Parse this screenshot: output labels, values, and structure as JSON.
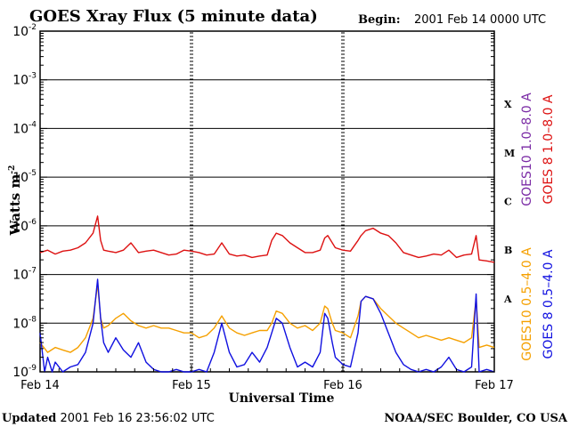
{
  "chart_data": {
    "type": "line",
    "title": "GOES Xray Flux (5 minute data)",
    "begin_label": "Begin:",
    "begin_value": "2001 Feb 14 0000 UTC",
    "ylabel_main": "Watts m",
    "ylabel_sup": "-2",
    "xlabel": "Universal Time",
    "updated_label": "Updated",
    "updated_value": "2001 Feb 16 23:56:02 UTC",
    "source": "NOAA/SEC Boulder, CO USA",
    "x_ticks": [
      "Feb 14",
      "Feb 15",
      "Feb 16",
      "Feb 17"
    ],
    "y_tick_exponents": [
      "-2",
      "-3",
      "-4",
      "-5",
      "-6",
      "-7",
      "-8",
      "-9"
    ],
    "y_tick_base": "10",
    "ylim_log10": [
      -9,
      -2
    ],
    "xlim_days": [
      0,
      3
    ],
    "flare_classes": [
      {
        "label": "X",
        "log10": -3.5
      },
      {
        "label": "M",
        "log10": -4.5
      },
      {
        "label": "C",
        "log10": -5.5
      },
      {
        "label": "B",
        "log10": -6.5
      },
      {
        "label": "A",
        "log10": -7.5
      }
    ],
    "legend": [
      {
        "text": "GOES10 1.0–8.0 A",
        "color": "#7a2aa5",
        "group": "long"
      },
      {
        "text": "GOES 8 1.0–8.0 A",
        "color": "#dd1111",
        "group": "long"
      },
      {
        "text": "GOES10 0.5–4.0 A",
        "color": "#f5a000",
        "group": "short"
      },
      {
        "text": "GOES 8 0.5–4.0 A",
        "color": "#1010e0",
        "group": "short"
      }
    ],
    "series": [
      {
        "name": "GOES 8 1.0–8.0 A",
        "color": "#dd1111",
        "x": [
          0,
          0.05,
          0.1,
          0.15,
          0.2,
          0.25,
          0.3,
          0.35,
          0.38,
          0.4,
          0.42,
          0.45,
          0.5,
          0.55,
          0.6,
          0.65,
          0.7,
          0.75,
          0.8,
          0.85,
          0.9,
          0.95,
          1.0,
          1.05,
          1.1,
          1.15,
          1.2,
          1.25,
          1.3,
          1.35,
          1.4,
          1.45,
          1.5,
          1.53,
          1.56,
          1.6,
          1.65,
          1.7,
          1.75,
          1.8,
          1.85,
          1.88,
          1.9,
          1.93,
          1.95,
          2.0,
          2.05,
          2.1,
          2.12,
          2.15,
          2.2,
          2.25,
          2.3,
          2.35,
          2.4,
          2.45,
          2.5,
          2.55,
          2.6,
          2.65,
          2.7,
          2.75,
          2.8,
          2.85,
          2.88,
          2.9,
          2.95,
          3.0
        ],
        "y": [
          -6.55,
          -6.5,
          -6.58,
          -6.52,
          -6.5,
          -6.45,
          -6.35,
          -6.15,
          -5.8,
          -6.3,
          -6.5,
          -6.52,
          -6.55,
          -6.5,
          -6.35,
          -6.55,
          -6.52,
          -6.5,
          -6.55,
          -6.6,
          -6.58,
          -6.5,
          -6.52,
          -6.55,
          -6.6,
          -6.58,
          -6.35,
          -6.58,
          -6.62,
          -6.6,
          -6.65,
          -6.62,
          -6.6,
          -6.3,
          -6.15,
          -6.2,
          -6.35,
          -6.45,
          -6.55,
          -6.55,
          -6.5,
          -6.25,
          -6.2,
          -6.35,
          -6.45,
          -6.5,
          -6.52,
          -6.3,
          -6.2,
          -6.1,
          -6.05,
          -6.15,
          -6.2,
          -6.35,
          -6.55,
          -6.6,
          -6.65,
          -6.62,
          -6.58,
          -6.6,
          -6.5,
          -6.65,
          -6.6,
          -6.58,
          -6.2,
          -6.7,
          -6.72,
          -6.75
        ]
      },
      {
        "name": "GOES10 0.5–4.0 A",
        "color": "#f5a000",
        "x": [
          0,
          0.05,
          0.1,
          0.15,
          0.2,
          0.25,
          0.3,
          0.35,
          0.38,
          0.4,
          0.42,
          0.45,
          0.5,
          0.55,
          0.6,
          0.65,
          0.7,
          0.75,
          0.8,
          0.85,
          0.9,
          0.95,
          1.0,
          1.05,
          1.1,
          1.15,
          1.2,
          1.25,
          1.3,
          1.35,
          1.4,
          1.45,
          1.5,
          1.53,
          1.56,
          1.6,
          1.65,
          1.7,
          1.75,
          1.8,
          1.85,
          1.88,
          1.9,
          1.93,
          1.95,
          2.0,
          2.05,
          2.1,
          2.12,
          2.15,
          2.2,
          2.25,
          2.3,
          2.35,
          2.4,
          2.45,
          2.5,
          2.55,
          2.6,
          2.65,
          2.7,
          2.75,
          2.8,
          2.85,
          2.88,
          2.9,
          2.95,
          3.0
        ],
        "y": [
          -8.4,
          -8.6,
          -8.5,
          -8.55,
          -8.6,
          -8.5,
          -8.3,
          -7.9,
          -7.2,
          -7.9,
          -8.1,
          -8.05,
          -7.9,
          -7.8,
          -7.95,
          -8.05,
          -8.1,
          -8.05,
          -8.1,
          -8.1,
          -8.15,
          -8.2,
          -8.2,
          -8.3,
          -8.25,
          -8.1,
          -7.85,
          -8.1,
          -8.2,
          -8.25,
          -8.2,
          -8.15,
          -8.15,
          -8.0,
          -7.75,
          -7.8,
          -8.0,
          -8.1,
          -8.05,
          -8.15,
          -8.0,
          -7.65,
          -7.7,
          -8.0,
          -8.15,
          -8.2,
          -8.3,
          -7.85,
          -7.55,
          -7.45,
          -7.5,
          -7.7,
          -7.85,
          -8.0,
          -8.1,
          -8.2,
          -8.3,
          -8.25,
          -8.3,
          -8.35,
          -8.3,
          -8.35,
          -8.4,
          -8.3,
          -7.5,
          -8.5,
          -8.45,
          -8.5
        ]
      },
      {
        "name": "GOES 8 0.5–4.0 A",
        "color": "#1010e0",
        "x": [
          0,
          0.03,
          0.05,
          0.08,
          0.1,
          0.15,
          0.2,
          0.25,
          0.3,
          0.35,
          0.38,
          0.4,
          0.42,
          0.45,
          0.5,
          0.55,
          0.6,
          0.65,
          0.7,
          0.75,
          0.8,
          0.85,
          0.9,
          0.95,
          1.0,
          1.05,
          1.1,
          1.15,
          1.2,
          1.25,
          1.3,
          1.35,
          1.4,
          1.45,
          1.5,
          1.53,
          1.56,
          1.6,
          1.65,
          1.7,
          1.75,
          1.8,
          1.85,
          1.88,
          1.9,
          1.93,
          1.95,
          2.0,
          2.05,
          2.1,
          2.12,
          2.15,
          2.2,
          2.25,
          2.3,
          2.35,
          2.4,
          2.45,
          2.5,
          2.55,
          2.6,
          2.65,
          2.7,
          2.75,
          2.8,
          2.85,
          2.88,
          2.9,
          2.95,
          3.0
        ],
        "y": [
          -8.2,
          -9.0,
          -8.7,
          -9.0,
          -8.8,
          -9.0,
          -8.9,
          -8.85,
          -8.6,
          -8.0,
          -7.1,
          -7.9,
          -8.4,
          -8.6,
          -8.3,
          -8.55,
          -8.7,
          -8.4,
          -8.8,
          -8.95,
          -9.0,
          -9.0,
          -8.95,
          -9.0,
          -9.0,
          -8.95,
          -9.0,
          -8.6,
          -8.0,
          -8.6,
          -8.9,
          -8.85,
          -8.6,
          -8.8,
          -8.5,
          -8.2,
          -7.9,
          -8.0,
          -8.5,
          -8.9,
          -8.8,
          -8.9,
          -8.6,
          -7.8,
          -7.9,
          -8.4,
          -8.7,
          -8.85,
          -8.9,
          -8.2,
          -7.55,
          -7.45,
          -7.5,
          -7.8,
          -8.2,
          -8.6,
          -8.85,
          -8.95,
          -9.0,
          -8.95,
          -9.0,
          -8.9,
          -8.7,
          -8.95,
          -9.0,
          -8.9,
          -7.4,
          -9.0,
          -8.95,
          -9.0
        ]
      }
    ]
  }
}
